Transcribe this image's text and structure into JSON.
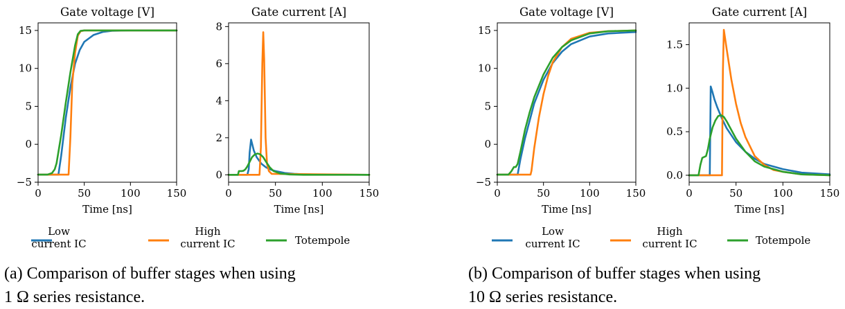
{
  "colors": {
    "low": "#1f77b4",
    "high": "#ff7f0e",
    "totem": "#2ca02c"
  },
  "figures": [
    {
      "caption": [
        "(a) Comparison of buffer stages when using",
        "1 Ω series resistance."
      ],
      "legend": [
        {
          "label": "Low\ncurrent IC",
          "color": "#1f77b4"
        },
        {
          "label": "High\ncurrent IC",
          "color": "#ff7f0e"
        },
        {
          "label": "Totempole",
          "color": "#2ca02c"
        }
      ]
    },
    {
      "caption": [
        "(b) Comparison of buffer stages when using",
        "10 Ω series resistance."
      ],
      "legend": [
        {
          "label": "Low\ncurrent IC",
          "color": "#1f77b4"
        },
        {
          "label": "High\ncurrent IC",
          "color": "#ff7f0e"
        },
        {
          "label": "Totempole",
          "color": "#2ca02c"
        }
      ]
    }
  ],
  "chart_data": [
    {
      "type": "line",
      "title": "Gate voltage [V]",
      "xlabel": "Time [ns]",
      "ylabel": "",
      "xlim": [
        0,
        150
      ],
      "ylim": [
        -5,
        16
      ],
      "xticks": [
        0,
        50,
        100,
        150
      ],
      "yticks": [
        -5,
        0,
        5,
        10,
        15
      ],
      "series": [
        {
          "name": "Low current IC",
          "color": "#1f77b4",
          "x": [
            0,
            20,
            22,
            25,
            30,
            35,
            40,
            45,
            50,
            60,
            70,
            80,
            100,
            150
          ],
          "y": [
            -4,
            -4,
            -4,
            -1.5,
            3.5,
            7.5,
            10.6,
            12.4,
            13.5,
            14.4,
            14.8,
            14.95,
            15,
            15
          ]
        },
        {
          "name": "High current IC",
          "color": "#ff7f0e",
          "x": [
            0,
            30,
            33,
            35,
            37,
            40,
            43,
            46,
            50,
            150
          ],
          "y": [
            -4,
            -4,
            -4,
            1,
            8,
            12,
            14.3,
            14.9,
            15,
            15
          ]
        },
        {
          "name": "Totempole",
          "color": "#2ca02c",
          "x": [
            0,
            10,
            15,
            18,
            20,
            25,
            30,
            35,
            40,
            43,
            46,
            50,
            150
          ],
          "y": [
            -4,
            -4,
            -3.8,
            -3.3,
            -2.5,
            1.2,
            5.5,
            9.5,
            13,
            14.5,
            14.95,
            15,
            15
          ]
        }
      ]
    },
    {
      "type": "line",
      "title": "Gate current [A]",
      "xlabel": "Time [ns]",
      "ylabel": "",
      "xlim": [
        0,
        150
      ],
      "ylim": [
        -0.4,
        8.2
      ],
      "xticks": [
        0,
        50,
        100,
        150
      ],
      "yticks": [
        0,
        2,
        4,
        6,
        8
      ],
      "series": [
        {
          "name": "Low current IC",
          "color": "#1f77b4",
          "x": [
            0,
            20,
            21.5,
            22.5,
            24,
            25,
            27,
            30,
            35,
            40,
            45,
            50,
            60,
            70,
            80,
            100,
            150
          ],
          "y": [
            0,
            0,
            0.3,
            1.2,
            1.9,
            1.7,
            1.3,
            0.95,
            0.6,
            0.4,
            0.28,
            0.2,
            0.1,
            0.05,
            0.03,
            0.01,
            0
          ]
        },
        {
          "name": "High current IC",
          "color": "#ff7f0e",
          "x": [
            0,
            33,
            34.5,
            36,
            37,
            38,
            39.5,
            41,
            43,
            46,
            150
          ],
          "y": [
            0,
            0,
            1.5,
            6,
            7.7,
            6.2,
            2,
            0.6,
            0.2,
            0.05,
            0
          ]
        },
        {
          "name": "Totempole",
          "color": "#2ca02c",
          "x": [
            0,
            10,
            11,
            14,
            16,
            18,
            20,
            23,
            25,
            28,
            31,
            34,
            37,
            40,
            44,
            48,
            55,
            65,
            80,
            150
          ],
          "y": [
            0,
            0,
            0.2,
            0.2,
            0.22,
            0.3,
            0.45,
            0.75,
            0.95,
            1.1,
            1.15,
            1.1,
            0.95,
            0.7,
            0.4,
            0.2,
            0.07,
            0.02,
            0.0,
            0
          ]
        }
      ]
    },
    {
      "type": "line",
      "title": "Gate voltage [V]",
      "xlabel": "Time [ns]",
      "ylabel": "",
      "xlim": [
        0,
        150
      ],
      "ylim": [
        -5,
        16
      ],
      "xticks": [
        0,
        50,
        100,
        150
      ],
      "yticks": [
        -5,
        0,
        5,
        10,
        15
      ],
      "series": [
        {
          "name": "Low current IC",
          "color": "#1f77b4",
          "x": [
            0,
            20,
            22,
            25,
            30,
            40,
            50,
            60,
            70,
            80,
            100,
            120,
            150
          ],
          "y": [
            -4,
            -4,
            -4,
            -2,
            0.8,
            5.4,
            8.5,
            10.7,
            12.2,
            13.2,
            14.2,
            14.6,
            14.8
          ]
        },
        {
          "name": "High current IC",
          "color": "#ff7f0e",
          "x": [
            0,
            36,
            37,
            40,
            45,
            50,
            55,
            60,
            70,
            80,
            100,
            120,
            150
          ],
          "y": [
            -4,
            -4,
            -3.5,
            -0.5,
            3.5,
            6.6,
            9,
            10.8,
            12.8,
            13.9,
            14.7,
            14.9,
            15
          ]
        },
        {
          "name": "Totempole",
          "color": "#2ca02c",
          "x": [
            0,
            12,
            15,
            18,
            20,
            22,
            25,
            30,
            35,
            40,
            50,
            60,
            70,
            80,
            100,
            120,
            150
          ],
          "y": [
            -4,
            -4,
            -3.6,
            -3,
            -3,
            -2.6,
            -1,
            1.9,
            4.2,
            6.2,
            9.2,
            11.4,
            12.8,
            13.7,
            14.6,
            14.9,
            15
          ]
        }
      ]
    },
    {
      "type": "line",
      "title": "Gate current [A]",
      "xlabel": "Time [ns]",
      "ylabel": "",
      "xlim": [
        0,
        150
      ],
      "ylim": [
        -0.08,
        1.75
      ],
      "xticks": [
        0,
        50,
        100,
        150
      ],
      "yticks": [
        0.0,
        0.5,
        1.0,
        1.5
      ],
      "series": [
        {
          "name": "Low current IC",
          "color": "#1f77b4",
          "x": [
            0,
            22,
            23,
            25,
            27,
            30,
            35,
            40,
            50,
            60,
            70,
            80,
            100,
            120,
            150
          ],
          "y": [
            0,
            0,
            1.02,
            0.95,
            0.87,
            0.78,
            0.65,
            0.54,
            0.38,
            0.27,
            0.19,
            0.13,
            0.07,
            0.03,
            0.01
          ]
        },
        {
          "name": "High current IC",
          "color": "#ff7f0e",
          "x": [
            0,
            35,
            36,
            37,
            40,
            45,
            50,
            55,
            60,
            70,
            80,
            90,
            100,
            120,
            150
          ],
          "y": [
            0,
            0,
            1.2,
            1.67,
            1.45,
            1.1,
            0.82,
            0.6,
            0.44,
            0.22,
            0.12,
            0.06,
            0.04,
            0.01,
            0
          ]
        },
        {
          "name": "Totempole",
          "color": "#2ca02c",
          "x": [
            0,
            10,
            12,
            14,
            18,
            20,
            22,
            25,
            28,
            31,
            34,
            37,
            40,
            45,
            50,
            60,
            70,
            80,
            100,
            120,
            150
          ],
          "y": [
            0,
            0,
            0.12,
            0.2,
            0.22,
            0.3,
            0.42,
            0.55,
            0.63,
            0.68,
            0.69,
            0.67,
            0.62,
            0.52,
            0.42,
            0.27,
            0.16,
            0.1,
            0.04,
            0.01,
            0
          ]
        }
      ]
    }
  ]
}
